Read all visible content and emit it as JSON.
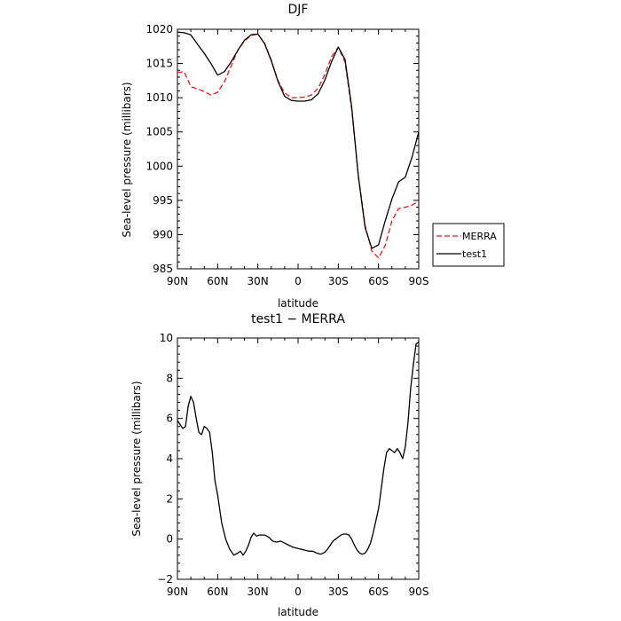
{
  "chart_data": [
    {
      "type": "line",
      "title": "DJF",
      "xlabel": "latitude",
      "ylabel": "Sea-level pressure (millibars)",
      "xlim": [
        90,
        -90
      ],
      "ylim": [
        985,
        1020
      ],
      "x_ticks": [
        90,
        60,
        30,
        0,
        -30,
        -60,
        -90
      ],
      "x_tick_labels": [
        "90N",
        "60N",
        "30N",
        "0",
        "30S",
        "60S",
        "90S"
      ],
      "y_ticks": [
        985,
        990,
        995,
        1000,
        1005,
        1010,
        1015,
        1020
      ],
      "y_tick_labels": [
        "985",
        "990",
        "995",
        "1000",
        "1005",
        "1010",
        "1015",
        "1020"
      ],
      "legend": "right",
      "series": [
        {
          "name": "MERRA",
          "color": "#e41a1c",
          "dash": "dashed",
          "x": [
            90,
            85,
            80,
            75,
            70,
            65,
            60,
            55,
            50,
            45,
            40,
            35,
            30,
            25,
            20,
            15,
            10,
            5,
            0,
            -5,
            -10,
            -15,
            -20,
            -25,
            -30,
            -35,
            -40,
            -45,
            -50,
            -55,
            -60,
            -65,
            -70,
            -75,
            -80,
            -85,
            -90
          ],
          "y": [
            1013.7,
            1013.8,
            1011.6,
            1011.3,
            1010.9,
            1010.4,
            1010.8,
            1012.3,
            1014.6,
            1016.9,
            1018.3,
            1019.1,
            1019.3,
            1018.0,
            1015.5,
            1012.5,
            1010.7,
            1010.0,
            1010.0,
            1010.1,
            1010.4,
            1011.4,
            1013.4,
            1016.0,
            1017.4,
            1015.2,
            1008.3,
            998.6,
            991.3,
            987.6,
            986.6,
            988.4,
            992.0,
            993.8,
            994.0,
            994.3,
            994.9
          ]
        },
        {
          "name": "test1",
          "color": "#000000",
          "dash": "solid",
          "x": [
            90,
            85,
            80,
            75,
            70,
            65,
            60,
            55,
            50,
            45,
            40,
            35,
            30,
            25,
            20,
            15,
            10,
            5,
            0,
            -5,
            -10,
            -15,
            -20,
            -25,
            -30,
            -35,
            -40,
            -45,
            -50,
            -55,
            -60,
            -65,
            -70,
            -75,
            -80,
            -85,
            -90
          ],
          "y": [
            1019.6,
            1019.5,
            1019.2,
            1017.8,
            1016.5,
            1015.0,
            1013.3,
            1013.8,
            1015.2,
            1016.9,
            1018.4,
            1019.2,
            1019.3,
            1017.9,
            1015.4,
            1012.4,
            1010.2,
            1009.6,
            1009.5,
            1009.5,
            1009.7,
            1010.6,
            1012.6,
            1015.3,
            1017.4,
            1015.6,
            1008.7,
            998.4,
            991.0,
            988.0,
            988.5,
            992.0,
            995.2,
            997.7,
            998.4,
            1001.3,
            1005.0
          ]
        }
      ]
    },
    {
      "type": "line",
      "title": "test1 − MERRA",
      "xlabel": "latitude",
      "ylabel": "Sea-level pressure (millibars)",
      "xlim": [
        90,
        -90
      ],
      "ylim": [
        -2,
        10
      ],
      "x_ticks": [
        90,
        60,
        30,
        0,
        -30,
        -60,
        -90
      ],
      "x_tick_labels": [
        "90N",
        "60N",
        "30N",
        "0",
        "30S",
        "60S",
        "90S"
      ],
      "y_ticks": [
        -2,
        0,
        2,
        4,
        6,
        8,
        10
      ],
      "y_tick_labels": [
        "−2",
        "0",
        "2",
        "4",
        "6",
        "8",
        "10"
      ],
      "series": [
        {
          "color": "#000000",
          "dash": "solid",
          "x": [
            90,
            88,
            86,
            84,
            82,
            80,
            78,
            76,
            74,
            72,
            70,
            68,
            66,
            64,
            62,
            60,
            57,
            54,
            51,
            48,
            45,
            43,
            41,
            39,
            37,
            35,
            33,
            31,
            29,
            27,
            25,
            22,
            19,
            16,
            13,
            10,
            7,
            4,
            1,
            -2,
            -5,
            -8,
            -11,
            -14,
            -17,
            -20,
            -22,
            -24,
            -26,
            -28,
            -30,
            -32,
            -34,
            -36,
            -38,
            -40,
            -42,
            -44,
            -46,
            -48,
            -50,
            -52,
            -54,
            -56,
            -58,
            -60,
            -62,
            -64,
            -66,
            -68,
            -70,
            -72,
            -74,
            -76,
            -78,
            -80,
            -82,
            -84,
            -86,
            -88,
            -90
          ],
          "y": [
            5.9,
            5.7,
            5.5,
            5.6,
            6.6,
            7.1,
            6.8,
            6.0,
            5.3,
            5.2,
            5.6,
            5.5,
            5.3,
            4.3,
            2.9,
            2.2,
            0.8,
            0.0,
            -0.5,
            -0.8,
            -0.7,
            -0.6,
            -0.8,
            -0.6,
            -0.3,
            0.1,
            0.3,
            0.15,
            0.2,
            0.2,
            0.2,
            0.1,
            -0.1,
            -0.15,
            -0.1,
            -0.2,
            -0.3,
            -0.4,
            -0.45,
            -0.5,
            -0.55,
            -0.6,
            -0.6,
            -0.7,
            -0.75,
            -0.65,
            -0.5,
            -0.3,
            -0.1,
            0.0,
            0.1,
            0.2,
            0.25,
            0.25,
            0.2,
            0.0,
            -0.3,
            -0.55,
            -0.7,
            -0.75,
            -0.7,
            -0.5,
            -0.2,
            0.3,
            0.9,
            1.5,
            2.5,
            3.5,
            4.3,
            4.5,
            4.4,
            4.3,
            4.5,
            4.3,
            4.0,
            4.6,
            5.8,
            7.5,
            8.7,
            9.7,
            9.8
          ]
        }
      ]
    }
  ]
}
